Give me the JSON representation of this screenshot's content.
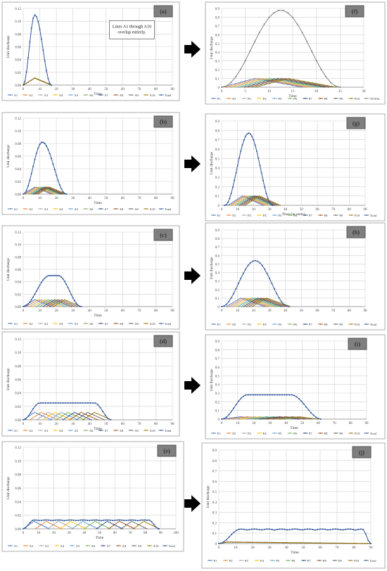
{
  "figure": {
    "arrow_color": "#000000",
    "colors": {
      "A1": "#4472c4",
      "A2": "#ed7d31",
      "A3": "#a5a5a5",
      "A4": "#ffc000",
      "A5": "#5b9bd5",
      "A6": "#70ad47",
      "A7": "#264478",
      "A8": "#9e480e",
      "A9": "#636363",
      "A10": "#997300",
      "Total": "#2f5597",
      "TotalLeft": "#2f5597",
      "TotalF": "#7f7f7f"
    }
  },
  "chart_data": [
    {
      "id": "a",
      "type": "line",
      "panel_label": "(a)",
      "xlabel": "Time",
      "ylabel": "Unit discharge",
      "xlim": [
        0,
        90
      ],
      "xticks": [
        0,
        10,
        20,
        30,
        40,
        50,
        60,
        70,
        80,
        90
      ],
      "ylim": [
        0,
        0.12
      ],
      "yticks": [
        "0.00",
        "0.02",
        "0.04",
        "0.06",
        "0.08",
        "0.10",
        "0.12"
      ],
      "note": "Lines A1 through A10 overlap entirely.",
      "sub": {
        "start": 0,
        "peak": 0.011,
        "tp": 7,
        "dur": 17,
        "shift": 0,
        "stretch": 1,
        "n": 10
      },
      "total": {
        "peak": 0.11,
        "start": 0,
        "end": 17,
        "tp": 7
      },
      "legend": [
        "A1",
        "A2",
        "A3",
        "A4",
        "A5",
        "A6",
        "A7",
        "A8",
        "A9",
        "A10",
        "Total"
      ]
    },
    {
      "id": "b",
      "type": "line",
      "panel_label": "(b)",
      "xlabel": "Time",
      "ylabel": "Unit discharge",
      "xlim": [
        0,
        90
      ],
      "xticks": [
        0,
        10,
        20,
        30,
        40,
        50,
        60,
        70,
        80,
        90
      ],
      "ylim": [
        0,
        0.12
      ],
      "yticks": [
        "0.00",
        "0.02",
        "0.04",
        "0.06",
        "0.08",
        "0.10",
        "0.12"
      ],
      "sub": {
        "start": 0,
        "peak": 0.011,
        "tp": 7,
        "dur": 17,
        "shift": 1,
        "n": 10
      },
      "total": {
        "peak": 0.082,
        "start": 0,
        "end": 26,
        "tp": 11.5
      },
      "legend": [
        "A1",
        "A2",
        "A3",
        "A4",
        "A5",
        "A6",
        "A7",
        "A8",
        "A9",
        "A10",
        "Total"
      ]
    },
    {
      "id": "c",
      "type": "line",
      "panel_label": "(c)",
      "xlabel": "Time",
      "ylabel": "Unit discharge",
      "xlim": [
        0,
        90
      ],
      "xticks": [
        0,
        10,
        20,
        30,
        40,
        50,
        60,
        70,
        80,
        90
      ],
      "ylim": [
        0,
        0.12
      ],
      "yticks": [
        "0.00",
        "0.02",
        "0.04",
        "0.06",
        "0.08",
        "0.10",
        "0.12"
      ],
      "sub": {
        "start": 0,
        "peak": 0.011,
        "tp": 7,
        "dur": 17,
        "shift": 2,
        "n": 10
      },
      "total": {
        "peak": 0.05,
        "start": 0,
        "end": 35,
        "tp": 16,
        "plateau": 5
      },
      "legend": [
        "A1",
        "A2",
        "A3",
        "A4",
        "A5",
        "A6",
        "A7",
        "A8",
        "A9",
        "A10",
        "Total"
      ]
    },
    {
      "id": "d",
      "type": "line",
      "panel_label": "(d)",
      "xlabel": "Time",
      "ylabel": "Unit discharge",
      "xlim": [
        0,
        90
      ],
      "xticks": [
        0,
        10,
        20,
        30,
        40,
        50,
        60,
        70,
        80,
        90
      ],
      "ylim": [
        0,
        0.12
      ],
      "yticks": [
        "0.00",
        "0.02",
        "0.04",
        "0.06",
        "0.08",
        "0.10",
        "0.12"
      ],
      "sub": {
        "start": 0,
        "peak": 0.011,
        "tp": 7,
        "dur": 17,
        "shift": 4,
        "n": 10
      },
      "total": {
        "peak": 0.025,
        "start": 0,
        "end": 53,
        "tp": 10,
        "plateau": 33
      },
      "legend": [
        "A1",
        "A2",
        "A3",
        "A4",
        "A5",
        "A6",
        "A7",
        "A8",
        "A9",
        "A10",
        "Total"
      ]
    },
    {
      "id": "e",
      "type": "line",
      "panel_label": "(e)",
      "xlabel": "Time",
      "ylabel": "Unit discharge",
      "xlim": [
        0,
        100
      ],
      "xticks": [
        0,
        10,
        20,
        30,
        40,
        50,
        60,
        70,
        80,
        90,
        100
      ],
      "ylim": [
        0,
        0.12
      ],
      "yticks": [
        "0.00",
        "0.02",
        "0.04",
        "0.06",
        "0.08",
        "0.10",
        "0.12"
      ],
      "sub": {
        "start": 0,
        "peak": 0.011,
        "tp": 7,
        "dur": 17,
        "shift": 8,
        "n": 10
      },
      "total": {
        "peak": 0.013,
        "start": 0,
        "end": 89,
        "tp": 7,
        "plateau": 75,
        "wavy": true
      },
      "legend": [
        "A1",
        "A2",
        "A3",
        "A4",
        "A5",
        "A6",
        "A7",
        "A8",
        "A9",
        "A10",
        "Total"
      ]
    },
    {
      "id": "f",
      "type": "line",
      "panel_label": "(f)",
      "xlabel": "Time",
      "ylabel": "Unit discharge",
      "xlim": [
        0,
        30
      ],
      "xticks": [
        0,
        5,
        10,
        15,
        20,
        25,
        30
      ],
      "ylim": [
        0,
        0.9
      ],
      "yticks": [
        "0",
        "0.1",
        "0.2",
        "0.3",
        "0.4",
        "0.5",
        "0.6",
        "0.7",
        "0.8",
        "0.9"
      ],
      "sub": {
        "start": 0,
        "peak": 0.1,
        "tp": 7,
        "dur": 17,
        "shift": 0.8,
        "n": 10
      },
      "total": {
        "peak": 0.88,
        "start": 0,
        "end": 25,
        "tp": 12.5
      },
      "legend": [
        "P1",
        "P2",
        "P3",
        "P4",
        "P5",
        "P6",
        "P7",
        "P8",
        "P9",
        "P10",
        "TOTAL"
      ]
    },
    {
      "id": "g",
      "type": "line",
      "panel_label": "(g)",
      "xlabel": "Time (in units)",
      "ylabel": "Unit discharge",
      "xlim": [
        0,
        90
      ],
      "xticks": [
        0,
        10,
        20,
        30,
        40,
        50,
        60,
        70,
        80,
        90
      ],
      "ylim": [
        0,
        0.9
      ],
      "yticks": [
        "0",
        "0.1",
        "0.2",
        "0.3",
        "0.4",
        "0.5",
        "0.6",
        "0.7",
        "0.8",
        "0.9"
      ],
      "sub": {
        "start": 4,
        "peak": 0.1,
        "tp": 9,
        "dur": 22,
        "shift": 1.2,
        "n": 10
      },
      "total": {
        "peak": 0.77,
        "start": 2,
        "end": 32,
        "tp": 17
      },
      "legend": [
        "P1",
        "P2",
        "P3",
        "P4",
        "P5",
        "P6",
        "P7",
        "P8",
        "P9",
        "P10",
        "Total"
      ]
    },
    {
      "id": "h",
      "type": "line",
      "panel_label": "(h)",
      "xlabel": "",
      "ylabel": "Unit discharge",
      "xlim": [
        0,
        90
      ],
      "xticks": [
        0,
        10,
        20,
        30,
        40,
        50,
        60,
        70,
        80,
        90
      ],
      "ylim": [
        0,
        0.9
      ],
      "yticks": [
        "0",
        "0.1",
        "0.2",
        "0.3",
        "0.4",
        "0.5",
        "0.6",
        "0.7",
        "0.8",
        "0.9"
      ],
      "sub": {
        "start": 3,
        "peak": 0.1,
        "tp": 9,
        "dur": 24,
        "shift": 1.8,
        "n": 10
      },
      "total": {
        "peak": 0.54,
        "start": 0,
        "end": 42,
        "tp": 21
      },
      "legend": [
        "P1",
        "P2",
        "P3",
        "P4",
        "P5",
        "P6",
        "P7",
        "P8",
        "P9",
        "P10",
        "Total"
      ]
    },
    {
      "id": "i",
      "type": "line",
      "panel_label": "(i)",
      "xlabel": "Time",
      "ylabel": "Unit discharge",
      "xlim": [
        0,
        90
      ],
      "xticks": [
        0,
        10,
        20,
        30,
        40,
        50,
        60,
        70,
        80,
        90
      ],
      "ylim": [
        0,
        0.9
      ],
      "yticks": [
        "0",
        "0.1",
        "0.2",
        "0.3",
        "0.4",
        "0.5",
        "0.6",
        "0.7",
        "0.8",
        "0.9"
      ],
      "sub": {
        "start": 0,
        "peak": 0.027,
        "tp": 12,
        "dur": 24,
        "shift": 4,
        "n": 10
      },
      "total": {
        "peak": 0.28,
        "start": 0,
        "end": 62,
        "tp": 16,
        "plateau": 27
      },
      "legend": [
        "P1",
        "P2",
        "P3",
        "P4",
        "P5",
        "P6",
        "P7",
        "P8",
        "P9",
        "P10",
        "Total"
      ]
    },
    {
      "id": "j",
      "type": "line",
      "panel_label": "(j)",
      "xlabel": "Time",
      "ylabel": "Unit discharge",
      "xlim": [
        0,
        90
      ],
      "xticks": [
        0,
        10,
        20,
        30,
        40,
        50,
        60,
        70,
        80,
        90
      ],
      "ylim": [
        0,
        0.9
      ],
      "yticks": [
        "0",
        "0.1",
        "0.2",
        "0.3",
        "0.4",
        "0.5",
        "0.6",
        "0.7",
        "0.8",
        "0.9"
      ],
      "sub": {
        "start": 0,
        "peak": 0.014,
        "tp": 5,
        "dur": 90,
        "shift": 0,
        "n": 10
      },
      "total": {
        "peak": 0.14,
        "start": 0,
        "end": 90,
        "tp": 13,
        "plateau": 72,
        "wavy": true
      },
      "legend": [
        "P1",
        "P2",
        "P3",
        "P4",
        "P5",
        "P6",
        "P7",
        "P8",
        "P9",
        "P10",
        "Total"
      ]
    }
  ]
}
